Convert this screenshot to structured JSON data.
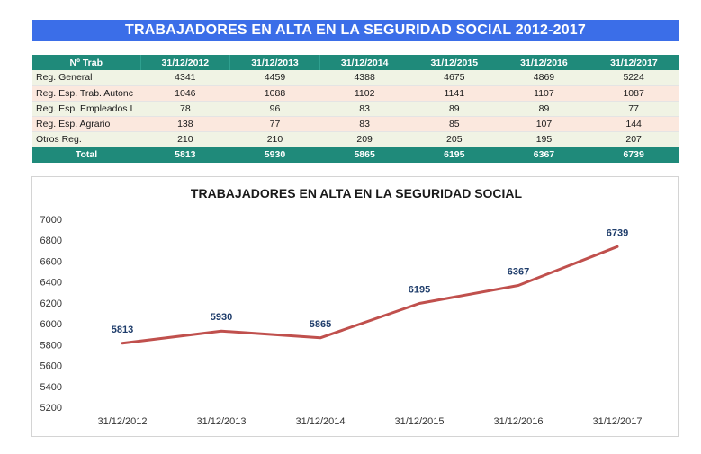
{
  "banner": {
    "title": "TRABAJADORES EN ALTA EN LA SEGURIDAD SOCIAL 2012-2017"
  },
  "table": {
    "header": [
      "Nº Trab",
      "31/12/2012",
      "31/12/2013",
      "31/12/2014",
      "31/12/2015",
      "31/12/2016",
      "31/12/2017"
    ],
    "rows": [
      [
        "Reg. General",
        "4341",
        "4459",
        "4388",
        "4675",
        "4869",
        "5224"
      ],
      [
        "Reg. Esp. Trab. Autonc",
        "1046",
        "1088",
        "1102",
        "1141",
        "1107",
        "1087"
      ],
      [
        "Reg. Esp. Empleados I",
        "78",
        "96",
        "83",
        "89",
        "89",
        "77"
      ],
      [
        "Reg. Esp. Agrario",
        "138",
        "77",
        "83",
        "85",
        "107",
        "144"
      ],
      [
        "Otros Reg.",
        "210",
        "210",
        "209",
        "205",
        "195",
        "207"
      ]
    ],
    "total": [
      "Total",
      "5813",
      "5930",
      "5865",
      "6195",
      "6367",
      "6739"
    ]
  },
  "chart_data": {
    "type": "line",
    "title": "TRABAJADORES EN ALTA EN LA SEGURIDAD SOCIAL",
    "categories": [
      "31/12/2012",
      "31/12/2013",
      "31/12/2014",
      "31/12/2015",
      "31/12/2016",
      "31/12/2017"
    ],
    "series": [
      {
        "values": [
          5813,
          5930,
          5865,
          6195,
          6367,
          6739
        ],
        "color": "#c0504d"
      }
    ],
    "ylim": [
      5200,
      7000
    ],
    "yticks": [
      5200,
      5400,
      5600,
      5800,
      6000,
      6200,
      6400,
      6600,
      6800,
      7000
    ],
    "grid": false,
    "data_labels": true,
    "label_color": "#1f3d6b"
  }
}
